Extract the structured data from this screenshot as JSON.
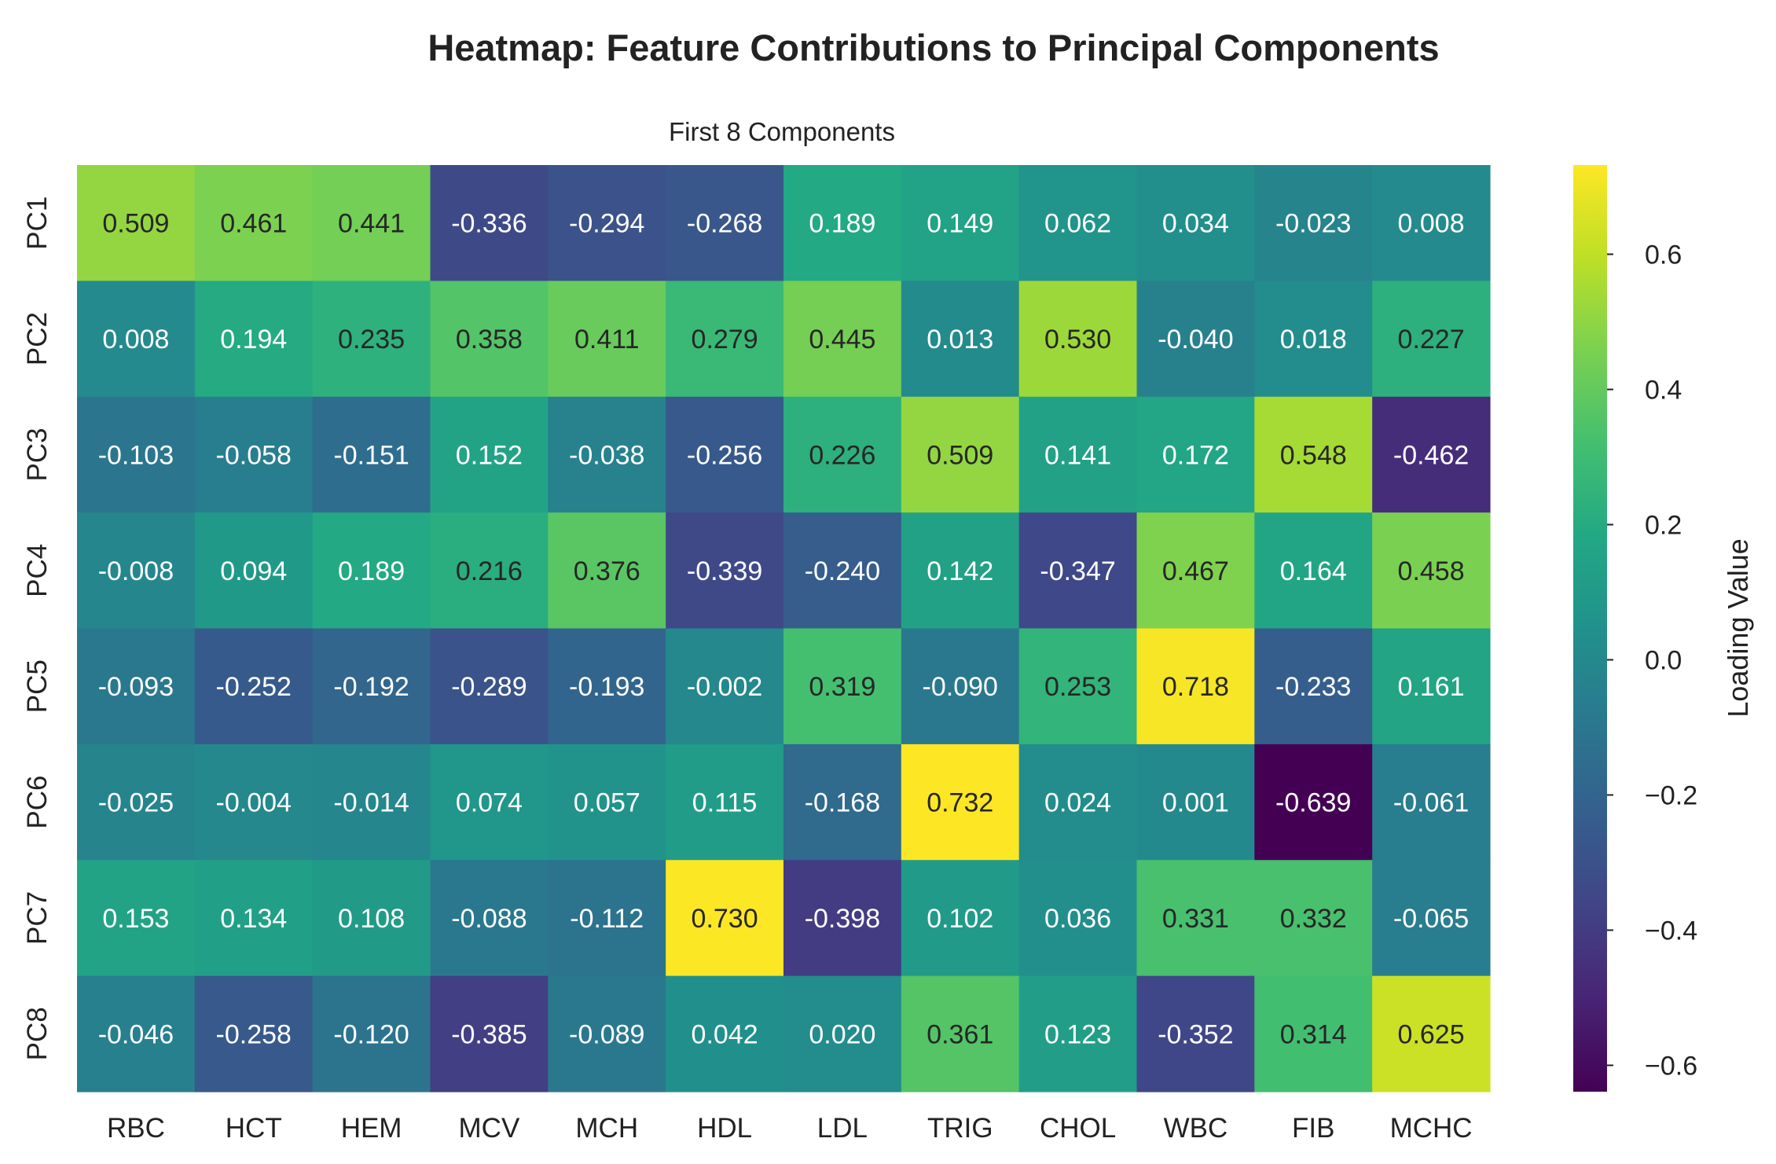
{
  "chart_data": {
    "type": "heatmap",
    "title": "Heatmap: Feature Contributions to Principal Components",
    "subtitle": "First 8 Components",
    "x_labels": [
      "RBC",
      "HCT",
      "HEM",
      "MCV",
      "MCH",
      "HDL",
      "LDL",
      "TRIG",
      "CHOL",
      "WBC",
      "FIB",
      "MCHC"
    ],
    "y_labels": [
      "PC1",
      "PC2",
      "PC3",
      "PC4",
      "PC5",
      "PC6",
      "PC7",
      "PC8"
    ],
    "values": [
      [
        0.509,
        0.461,
        0.441,
        -0.336,
        -0.294,
        -0.268,
        0.189,
        0.149,
        0.062,
        0.034,
        -0.023,
        0.008
      ],
      [
        0.008,
        0.194,
        0.235,
        0.358,
        0.411,
        0.279,
        0.445,
        0.013,
        0.53,
        -0.04,
        0.018,
        0.227
      ],
      [
        -0.103,
        -0.058,
        -0.151,
        0.152,
        -0.038,
        -0.256,
        0.226,
        0.509,
        0.141,
        0.172,
        0.548,
        -0.462
      ],
      [
        -0.008,
        0.094,
        0.189,
        0.216,
        0.376,
        -0.339,
        -0.24,
        0.142,
        -0.347,
        0.467,
        0.164,
        0.458
      ],
      [
        -0.093,
        -0.252,
        -0.192,
        -0.289,
        -0.193,
        -0.002,
        0.319,
        -0.09,
        0.253,
        0.718,
        -0.233,
        0.161
      ],
      [
        -0.025,
        -0.004,
        -0.014,
        0.074,
        0.057,
        0.115,
        -0.168,
        0.732,
        0.024,
        0.001,
        -0.639,
        -0.061
      ],
      [
        0.153,
        0.134,
        0.108,
        -0.088,
        -0.112,
        0.73,
        -0.398,
        0.102,
        0.036,
        0.331,
        0.332,
        -0.065
      ],
      [
        -0.046,
        -0.258,
        -0.12,
        -0.385,
        -0.089,
        0.042,
        0.02,
        0.361,
        0.123,
        -0.352,
        0.314,
        0.625
      ]
    ],
    "colormap": "viridis",
    "value_format": "3 decimals",
    "colorbar": {
      "label": "Loading Value",
      "range": [
        -0.639,
        0.732
      ],
      "ticks": [
        0.6,
        0.4,
        0.2,
        0.0,
        -0.2,
        -0.4,
        -0.6
      ],
      "tick_labels": [
        "0.6",
        "0.4",
        "0.2",
        "0.0",
        "−0.2",
        "−0.4",
        "−0.6"
      ]
    }
  }
}
